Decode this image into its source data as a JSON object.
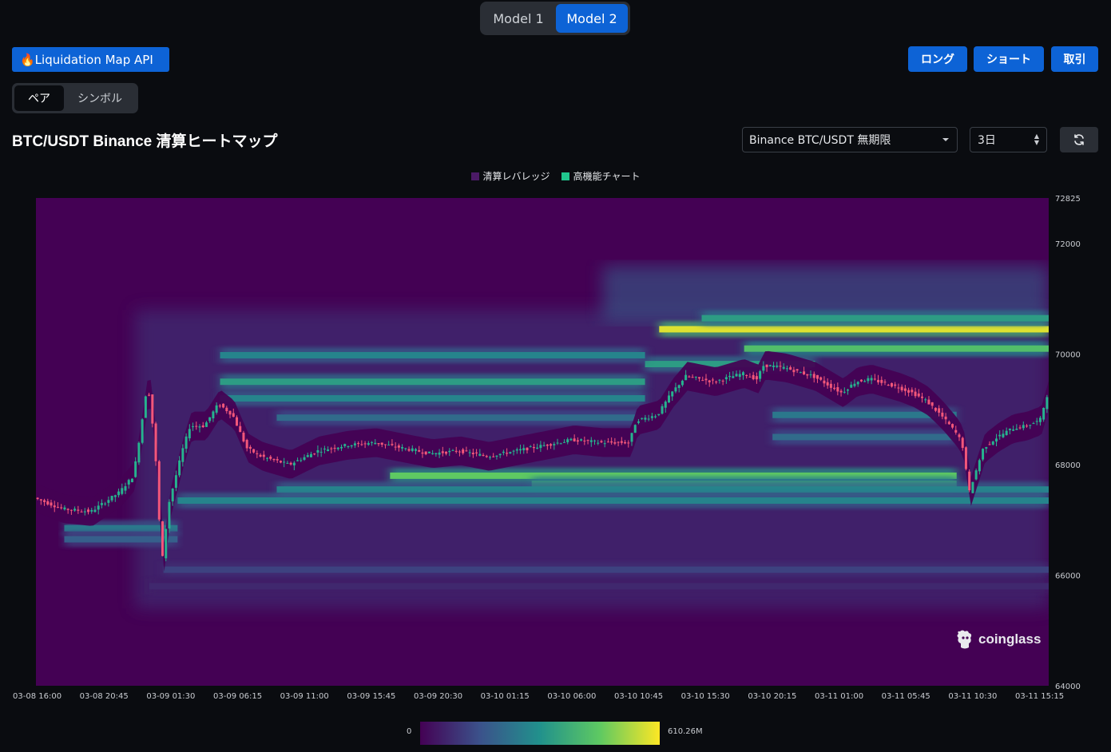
{
  "model_toggle": {
    "options": [
      "Model 1",
      "Model 2"
    ],
    "selected": "Model 2"
  },
  "api_button": "🔥Liquidation Map API",
  "actions": {
    "long": "ロング",
    "short": "ショート",
    "trade": "取引"
  },
  "view_toggle": {
    "options": [
      "ペア",
      "シンボル"
    ],
    "selected": "ペア"
  },
  "page_title": "BTC/USDT Binance 清算ヒートマップ",
  "pair_select": "Binance BTC/USDT 無期限",
  "period_select": "3日",
  "legend": [
    "清算レバレッジ",
    "高機能チャート"
  ],
  "colors": {
    "accent": "#0d63d6",
    "heat_low": "#440154",
    "heat_high": "#fde725",
    "candle_up": "#26b38f",
    "candle_down": "#f2577a",
    "legend_leverage": "#4b1a66",
    "legend_chart": "#20c68d"
  },
  "watermark": "coinglass",
  "chart_data": {
    "type": "heatmap",
    "title": "",
    "xlabel": "",
    "ylabel": "",
    "x_ticks": [
      "03-08 16:00",
      "03-08 20:45",
      "03-09 01:30",
      "03-09 06:15",
      "03-09 11:00",
      "03-09 15:45",
      "03-09 20:30",
      "03-10 01:15",
      "03-10 06:00",
      "03-10 10:45",
      "03-10 15:30",
      "03-10 20:15",
      "03-11 01:00",
      "03-11 05:45",
      "03-11 10:30",
      "03-11 15:15"
    ],
    "y_ticks": [
      72825,
      72000,
      70000,
      68000,
      66000,
      64000
    ],
    "ylim": [
      64000,
      72825
    ],
    "time_range_hours": [
      0,
      71.5
    ],
    "colorbar": {
      "min_label": "0",
      "max_label": "610.26M",
      "min": 0,
      "max": 610.26
    },
    "series_name": "清算レバレッジ",
    "price_path": [
      [
        0,
        67400
      ],
      [
        2,
        67200
      ],
      [
        4,
        67150
      ],
      [
        6,
        67500
      ],
      [
        7,
        67800
      ],
      [
        7.5,
        68600
      ],
      [
        8,
        69500
      ],
      [
        8.5,
        68400
      ],
      [
        9,
        66200
      ],
      [
        9.5,
        67300
      ],
      [
        10.5,
        68300
      ],
      [
        11,
        68700
      ],
      [
        12,
        68700
      ],
      [
        13,
        69100
      ],
      [
        14,
        68900
      ],
      [
        15,
        68300
      ],
      [
        16,
        68150
      ],
      [
        18,
        68000
      ],
      [
        20,
        68250
      ],
      [
        22,
        68350
      ],
      [
        24,
        68400
      ],
      [
        26,
        68300
      ],
      [
        28,
        68200
      ],
      [
        30,
        68250
      ],
      [
        32,
        68150
      ],
      [
        34,
        68250
      ],
      [
        36,
        68350
      ],
      [
        38,
        68450
      ],
      [
        40,
        68400
      ],
      [
        42,
        68400
      ],
      [
        42.5,
        68800
      ],
      [
        44,
        68900
      ],
      [
        45,
        69300
      ],
      [
        46,
        69600
      ],
      [
        48,
        69500
      ],
      [
        50,
        69650
      ],
      [
        51,
        69550
      ],
      [
        51.5,
        69800
      ],
      [
        53,
        69750
      ],
      [
        55,
        69600
      ],
      [
        56,
        69450
      ],
      [
        57,
        69300
      ],
      [
        58,
        69500
      ],
      [
        59,
        69550
      ],
      [
        61,
        69400
      ],
      [
        62,
        69300
      ],
      [
        63,
        69150
      ],
      [
        64,
        68900
      ],
      [
        65,
        68600
      ],
      [
        65.5,
        68400
      ],
      [
        66,
        67500
      ],
      [
        66.5,
        67900
      ],
      [
        67,
        68300
      ],
      [
        68,
        68500
      ],
      [
        69,
        68650
      ],
      [
        70,
        68700
      ],
      [
        71,
        68800
      ],
      [
        71.5,
        69250
      ]
    ],
    "liquidation_bands": [
      {
        "from": 44,
        "to": 71.5,
        "price": 70450,
        "intensity": 0.95
      },
      {
        "from": 47,
        "to": 71.5,
        "price": 70650,
        "intensity": 0.55
      },
      {
        "from": 50,
        "to": 71.5,
        "price": 70100,
        "intensity": 0.7
      },
      {
        "from": 43,
        "to": 55,
        "price": 69820,
        "intensity": 0.55
      },
      {
        "from": 13,
        "to": 43,
        "price": 69980,
        "intensity": 0.45
      },
      {
        "from": 13,
        "to": 43,
        "price": 69500,
        "intensity": 0.55
      },
      {
        "from": 13,
        "to": 43,
        "price": 69200,
        "intensity": 0.45
      },
      {
        "from": 17,
        "to": 43,
        "price": 68850,
        "intensity": 0.35
      },
      {
        "from": 52,
        "to": 65,
        "price": 68900,
        "intensity": 0.4
      },
      {
        "from": 52,
        "to": 65,
        "price": 68500,
        "intensity": 0.35
      },
      {
        "from": 25,
        "to": 65,
        "price": 67800,
        "intensity": 0.75
      },
      {
        "from": 35,
        "to": 65,
        "price": 67650,
        "intensity": 0.6
      },
      {
        "from": 17,
        "to": 71.5,
        "price": 67550,
        "intensity": 0.45
      },
      {
        "from": 10,
        "to": 71.5,
        "price": 67350,
        "intensity": 0.45
      },
      {
        "from": 2,
        "to": 10,
        "price": 66850,
        "intensity": 0.4
      },
      {
        "from": 2,
        "to": 10,
        "price": 66650,
        "intensity": 0.3
      },
      {
        "from": 9,
        "to": 71.5,
        "price": 66100,
        "intensity": 0.2
      },
      {
        "from": 8,
        "to": 71.5,
        "price": 65800,
        "intensity": 0.12
      }
    ]
  }
}
